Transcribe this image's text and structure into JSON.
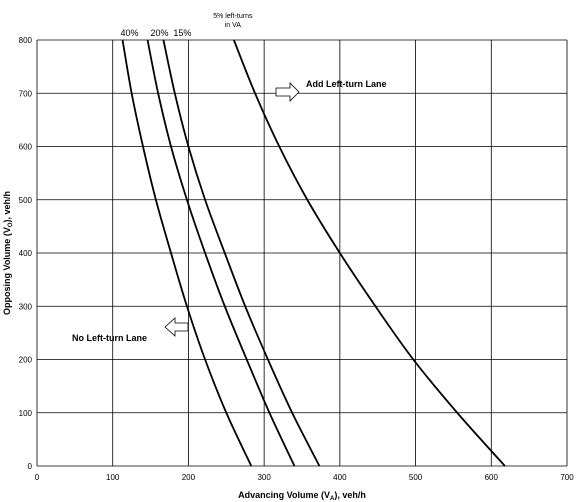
{
  "chart_data": {
    "type": "line",
    "xlabel_main": "Advancing Volume (V",
    "xlabel_sub": "A",
    "xlabel_tail": "), veh/h",
    "ylabel_main": "Opposing Volume (V",
    "ylabel_sub": "O",
    "ylabel_tail": "), veh/h",
    "xlim": [
      0,
      700
    ],
    "ylim": [
      0,
      800
    ],
    "xticks": [
      0,
      100,
      200,
      300,
      400,
      500,
      600,
      700
    ],
    "yticks": [
      0,
      100,
      200,
      300,
      400,
      500,
      600,
      700,
      800
    ],
    "grid": true,
    "series": [
      {
        "name": "40%",
        "points": [
          [
            113,
            800
          ],
          [
            125,
            700
          ],
          [
            140,
            600
          ],
          [
            157,
            500
          ],
          [
            177,
            400
          ],
          [
            198,
            300
          ],
          [
            222,
            200
          ],
          [
            250,
            100
          ],
          [
            283,
            0
          ]
        ]
      },
      {
        "name": "20%",
        "points": [
          [
            146,
            800
          ],
          [
            160,
            700
          ],
          [
            177,
            600
          ],
          [
            198,
            500
          ],
          [
            222,
            400
          ],
          [
            248,
            300
          ],
          [
            277,
            200
          ],
          [
            307,
            100
          ],
          [
            340,
            0
          ]
        ]
      },
      {
        "name": "15%",
        "points": [
          [
            167,
            800
          ],
          [
            182,
            700
          ],
          [
            200,
            600
          ],
          [
            222,
            500
          ],
          [
            248,
            400
          ],
          [
            275,
            300
          ],
          [
            305,
            200
          ],
          [
            337,
            100
          ],
          [
            373,
            0
          ]
        ]
      },
      {
        "name": "5% left-turns in VA",
        "points": [
          [
            260,
            800
          ],
          [
            288,
            700
          ],
          [
            320,
            600
          ],
          [
            357,
            500
          ],
          [
            400,
            400
          ],
          [
            447,
            300
          ],
          [
            497,
            200
          ],
          [
            555,
            100
          ],
          [
            618,
            0
          ]
        ]
      }
    ],
    "annotations": {
      "add_lane": "Add Left-turn Lane",
      "no_lane": "No Left-turn Lane",
      "label_5pct_line1": "5% left-turns",
      "label_5pct_line2": "in VA"
    }
  }
}
